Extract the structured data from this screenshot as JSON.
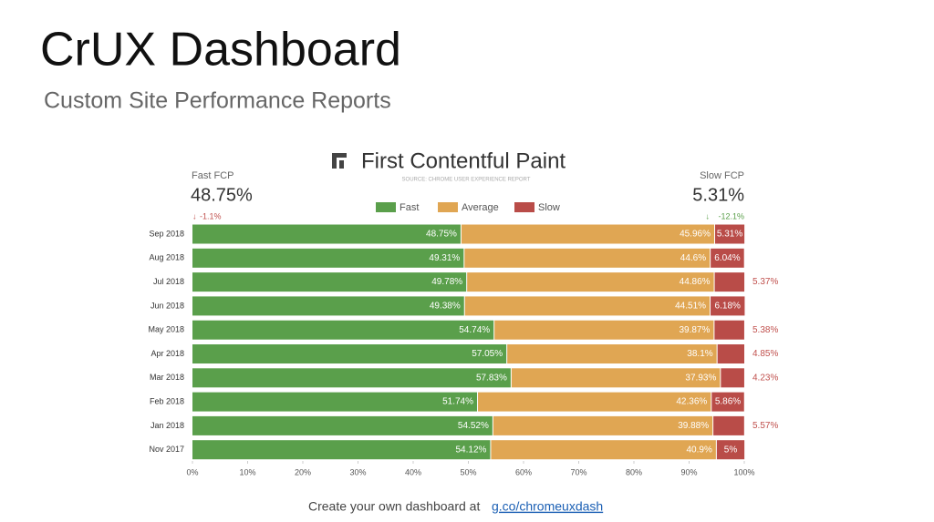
{
  "slide": {
    "title": "CrUX Dashboard",
    "subtitle": "Custom Site Performance Reports",
    "footer": {
      "text": "Create your own dashboard at",
      "link": "g.co/chromeuxdash"
    }
  },
  "chart_data": {
    "type": "bar",
    "orientation": "horizontal",
    "stacked": true,
    "title": "First Contentful Paint",
    "source": "SOURCE: CHROME USER EXPERIENCE REPORT",
    "kpis": [
      {
        "label": "Fast FCP",
        "value": "48.75%",
        "change": "-1.1%"
      },
      {
        "label": "Slow FCP",
        "value": "5.31%",
        "change": "-12.1%"
      }
    ],
    "legend": "top",
    "categories": [
      "Sep 2018",
      "Aug 2018",
      "Jul 2018",
      "Jun 2018",
      "May 2018",
      "Apr 2018",
      "Mar 2018",
      "Feb 2018",
      "Jan 2018",
      "Nov 2017"
    ],
    "series": [
      {
        "name": "Fast",
        "color": "#5a9f4b",
        "values": [
          48.75,
          49.31,
          49.78,
          49.38,
          54.74,
          57.05,
          57.83,
          51.74,
          54.52,
          54.12
        ],
        "value_labels": [
          "48.75%",
          "49.31%",
          "49.78%",
          "49.38%",
          "54.74%",
          "57.05%",
          "57.83%",
          "51.74%",
          "54.52%",
          "54.12%"
        ]
      },
      {
        "name": "Average",
        "color": "#e0a653",
        "values": [
          45.96,
          44.6,
          44.86,
          44.51,
          39.87,
          38.1,
          37.93,
          42.36,
          39.88,
          40.9
        ],
        "value_labels": [
          "45.96%",
          "44.6%",
          "44.86%",
          "44.51%",
          "39.87%",
          "38.1%",
          "37.93%",
          "42.36%",
          "39.88%",
          "40.9%"
        ]
      },
      {
        "name": "Slow",
        "color": "#b94c48",
        "values": [
          5.31,
          6.04,
          5.37,
          6.18,
          5.38,
          4.85,
          4.23,
          5.86,
          5.57,
          5
        ],
        "value_labels": [
          "5.31%",
          "6.04%",
          "5.37%",
          "6.18%",
          "5.38%",
          "4.85%",
          "4.23%",
          "5.86%",
          "5.57%",
          "5%"
        ]
      }
    ],
    "xlim": [
      0,
      100
    ],
    "xticks": [
      {
        "value": 0,
        "label": "0%"
      },
      {
        "value": 10,
        "label": "10%"
      },
      {
        "value": 20,
        "label": "20%"
      },
      {
        "value": 30,
        "label": "30%"
      },
      {
        "value": 40,
        "label": "40%"
      },
      {
        "value": 50,
        "label": "50%"
      },
      {
        "value": 60,
        "label": "60%"
      },
      {
        "value": 70,
        "label": "70%"
      },
      {
        "value": 80,
        "label": "80%"
      },
      {
        "value": 90,
        "label": "90%"
      },
      {
        "value": 100,
        "label": "100%"
      }
    ],
    "grid": false
  }
}
